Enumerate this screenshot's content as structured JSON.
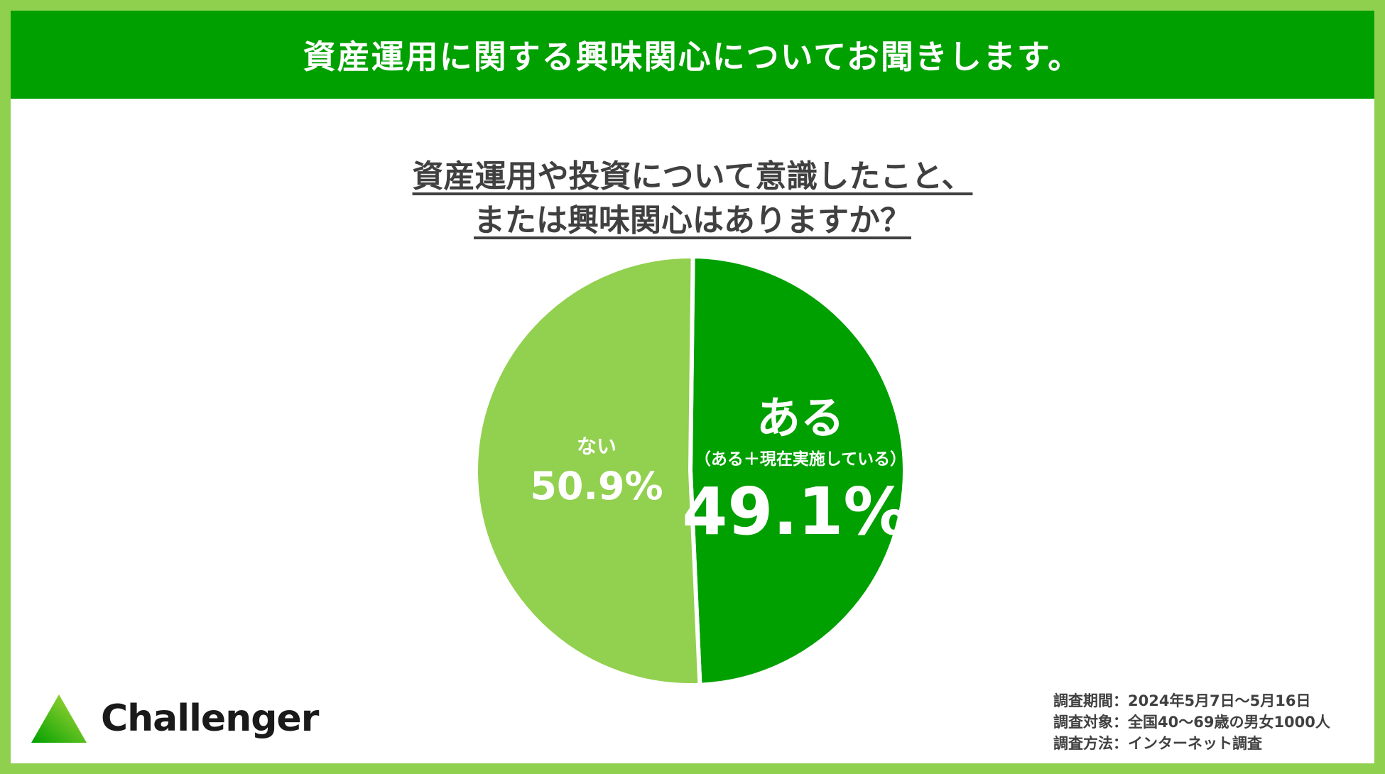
{
  "header": {
    "title": "資産運用に関する興味関心についてお聞きします。"
  },
  "question": {
    "line1": "資産運用や投資について意識したこと、",
    "line2": "または興味関心はありますか？"
  },
  "colors": {
    "primary": "#00a000",
    "secondary": "#92d050",
    "frame": "#8fd14f"
  },
  "chart_data": {
    "type": "pie",
    "slices": [
      {
        "label": "ある",
        "sublabel": "（ある＋現在実施している）",
        "value": 49.1,
        "display": "49.1%",
        "color": "#00a000"
      },
      {
        "label": "ない",
        "value": 50.9,
        "display": "50.9%",
        "color": "#92d050"
      }
    ]
  },
  "footer": {
    "logo_text": "Challenger",
    "survey": [
      "調査期間：2024年5月7日～5月16日",
      "調査対象：全国40～69歳の男女1000人",
      "調査方法：インターネット調査"
    ]
  }
}
